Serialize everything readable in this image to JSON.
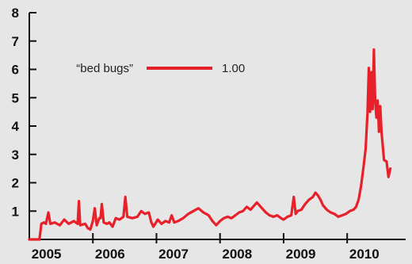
{
  "chart_data": {
    "type": "line",
    "title": "",
    "xlabel": "",
    "ylabel": "",
    "ylim": [
      0,
      8
    ],
    "xlim": [
      2005.0,
      2010.92
    ],
    "yticks": [
      "1",
      "2",
      "3",
      "4",
      "5",
      "6",
      "7",
      "8"
    ],
    "xticks": [
      "2005",
      "2006",
      "2007",
      "2008",
      "2009",
      "2010"
    ],
    "grid": false,
    "legend_position": "top-left",
    "series": [
      {
        "name": "“bed bugs”",
        "legend_value": "1.00",
        "color": "#e8202a",
        "points": [
          [
            2005.0,
            0.0
          ],
          [
            2005.12,
            0.0
          ],
          [
            2005.16,
            0.0
          ],
          [
            2005.19,
            0.55
          ],
          [
            2005.23,
            0.6
          ],
          [
            2005.26,
            0.55
          ],
          [
            2005.3,
            0.95
          ],
          [
            2005.33,
            0.55
          ],
          [
            2005.4,
            0.6
          ],
          [
            2005.48,
            0.5
          ],
          [
            2005.55,
            0.7
          ],
          [
            2005.62,
            0.55
          ],
          [
            2005.7,
            0.65
          ],
          [
            2005.76,
            0.55
          ],
          [
            2005.78,
            1.35
          ],
          [
            2005.8,
            0.5
          ],
          [
            2005.88,
            0.55
          ],
          [
            2005.92,
            0.4
          ],
          [
            2005.96,
            0.35
          ],
          [
            2006.0,
            0.65
          ],
          [
            2006.03,
            1.1
          ],
          [
            2006.06,
            0.5
          ],
          [
            2006.1,
            0.75
          ],
          [
            2006.12,
            0.75
          ],
          [
            2006.14,
            1.25
          ],
          [
            2006.17,
            0.6
          ],
          [
            2006.22,
            0.55
          ],
          [
            2006.26,
            0.6
          ],
          [
            2006.31,
            0.45
          ],
          [
            2006.36,
            0.75
          ],
          [
            2006.42,
            0.7
          ],
          [
            2006.48,
            0.8
          ],
          [
            2006.51,
            1.5
          ],
          [
            2006.54,
            0.8
          ],
          [
            2006.62,
            0.75
          ],
          [
            2006.7,
            0.8
          ],
          [
            2006.76,
            1.0
          ],
          [
            2006.82,
            0.9
          ],
          [
            2006.88,
            0.95
          ],
          [
            2006.92,
            0.6
          ],
          [
            2006.95,
            0.45
          ],
          [
            2006.98,
            0.55
          ],
          [
            2007.02,
            0.7
          ],
          [
            2007.08,
            0.55
          ],
          [
            2007.14,
            0.65
          ],
          [
            2007.2,
            0.6
          ],
          [
            2007.24,
            0.85
          ],
          [
            2007.28,
            0.6
          ],
          [
            2007.34,
            0.65
          ],
          [
            2007.42,
            0.75
          ],
          [
            2007.5,
            0.9
          ],
          [
            2007.58,
            1.0
          ],
          [
            2007.66,
            1.1
          ],
          [
            2007.74,
            0.95
          ],
          [
            2007.82,
            0.85
          ],
          [
            2007.88,
            0.65
          ],
          [
            2007.94,
            0.5
          ],
          [
            2008.0,
            0.65
          ],
          [
            2008.06,
            0.75
          ],
          [
            2008.12,
            0.8
          ],
          [
            2008.18,
            0.75
          ],
          [
            2008.24,
            0.85
          ],
          [
            2008.3,
            0.95
          ],
          [
            2008.36,
            1.0
          ],
          [
            2008.42,
            1.15
          ],
          [
            2008.48,
            1.05
          ],
          [
            2008.54,
            1.2
          ],
          [
            2008.58,
            1.3
          ],
          [
            2008.62,
            1.2
          ],
          [
            2008.66,
            1.1
          ],
          [
            2008.72,
            0.95
          ],
          [
            2008.78,
            0.85
          ],
          [
            2008.84,
            0.8
          ],
          [
            2008.9,
            0.85
          ],
          [
            2008.96,
            0.75
          ],
          [
            2009.0,
            0.7
          ],
          [
            2009.06,
            0.8
          ],
          [
            2009.12,
            0.85
          ],
          [
            2009.16,
            1.5
          ],
          [
            2009.19,
            0.9
          ],
          [
            2009.22,
            1.0
          ],
          [
            2009.28,
            1.05
          ],
          [
            2009.34,
            1.25
          ],
          [
            2009.4,
            1.4
          ],
          [
            2009.46,
            1.5
          ],
          [
            2009.5,
            1.65
          ],
          [
            2009.54,
            1.55
          ],
          [
            2009.58,
            1.4
          ],
          [
            2009.62,
            1.2
          ],
          [
            2009.68,
            1.05
          ],
          [
            2009.74,
            0.95
          ],
          [
            2009.8,
            0.9
          ],
          [
            2009.86,
            0.8
          ],
          [
            2009.92,
            0.85
          ],
          [
            2009.98,
            0.9
          ],
          [
            2010.04,
            1.0
          ],
          [
            2010.1,
            1.05
          ],
          [
            2010.14,
            1.15
          ],
          [
            2010.18,
            1.4
          ],
          [
            2010.22,
            1.9
          ],
          [
            2010.26,
            2.6
          ],
          [
            2010.29,
            3.2
          ],
          [
            2010.32,
            4.5
          ],
          [
            2010.34,
            6.05
          ],
          [
            2010.36,
            4.5
          ],
          [
            2010.38,
            5.9
          ],
          [
            2010.4,
            4.6
          ],
          [
            2010.42,
            6.7
          ],
          [
            2010.44,
            4.9
          ],
          [
            2010.46,
            4.3
          ],
          [
            2010.48,
            4.9
          ],
          [
            2010.5,
            3.8
          ],
          [
            2010.52,
            4.7
          ],
          [
            2010.54,
            3.8
          ],
          [
            2010.56,
            3.3
          ],
          [
            2010.58,
            2.8
          ],
          [
            2010.62,
            2.75
          ],
          [
            2010.65,
            2.2
          ],
          [
            2010.68,
            2.5
          ]
        ]
      }
    ]
  }
}
